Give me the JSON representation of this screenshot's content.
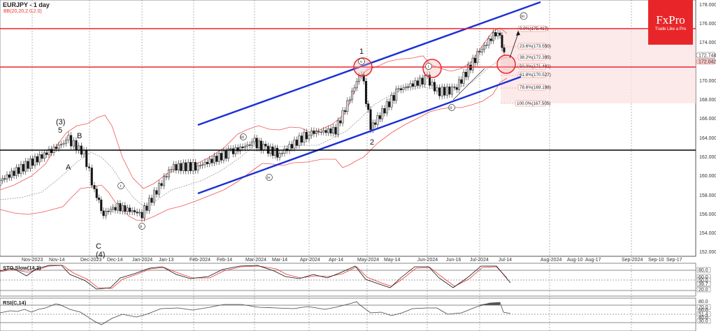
{
  "header": {
    "title": "EURJPY - 1 day",
    "indicator": "BB(20,20,2.0,2.0)"
  },
  "logo": {
    "brand": "FxPro",
    "tagline": "Trade Like a Pro",
    "color": "#e8262a"
  },
  "panels": {
    "stoch": {
      "label": "STO Slow(14,3)",
      "levels": [
        "80.0",
        "60.0",
        "50.0",
        "39.7",
        "20.0"
      ]
    },
    "rsi": {
      "label": "RSI(C,14)",
      "levels": [
        "80.0",
        "70.0",
        "60.0",
        "51.4",
        "40.0",
        "30.0"
      ]
    }
  },
  "chart_data": {
    "type": "candlestick",
    "title": "EURJPY - 1 day",
    "symbol": "EURJPY",
    "timeframe": "1 day",
    "ylim": [
      152,
      178
    ],
    "y_ticks": [
      "178.000",
      "176.000",
      "174.000",
      "172.000",
      "170.000",
      "168.000",
      "166.000",
      "164.000",
      "162.000",
      "160.000",
      "158.000",
      "156.000",
      "154.000",
      "152.000"
    ],
    "x_ticks": [
      "Nov-2023",
      "Nov-14",
      "Dec-2023",
      "Dec-14",
      "Jan-2024",
      "Jan-13",
      "Feb-2024",
      "Feb-14",
      "Mar-2024",
      "Mar-14",
      "Apr-2024",
      "Apr-14",
      "May-2024",
      "May-14",
      "Jun-2024",
      "Jun-16",
      "Jul-2024",
      "Jul-14",
      "Aug-2024",
      "Aug-10",
      "Aug-17",
      "Sep-2024",
      "Sep-10",
      "Sep-17"
    ],
    "price_labels": {
      "last": "172.042",
      "bid": "172.744"
    },
    "horizontal_levels": [
      {
        "price": 175.4,
        "color": "#e8262a",
        "name": "resistance"
      },
      {
        "price": 171.4,
        "color": "#e8262a",
        "name": "support"
      },
      {
        "price": 162.6,
        "color": "#000000",
        "name": "long-term support"
      }
    ],
    "fibonacci": [
      {
        "label": "0.0%(175.417)",
        "price": 175.417
      },
      {
        "label": "23.6%(173.550)",
        "price": 173.55
      },
      {
        "label": "38.2%(172.395)",
        "price": 172.395
      },
      {
        "label": "50.0%(171.461)",
        "price": 171.461
      },
      {
        "label": "61.8%(170.527)",
        "price": 170.527
      },
      {
        "label": "78.6%(169.198)",
        "price": 169.198
      },
      {
        "label": "100.0%(167.505)",
        "price": 167.505
      }
    ],
    "wave_labels": [
      "(3)",
      "5",
      "A",
      "B",
      "C",
      "(4)",
      "1",
      "2",
      "i",
      "ii",
      "iii",
      "iv",
      "v",
      "i",
      "ii",
      "iii"
    ],
    "channel_color": "#1a2fd6",
    "series": [
      {
        "name": "close_approx",
        "x": [
          "Nov-2023",
          "Nov-14",
          "Nov-25",
          "Dec-2023",
          "Dec-07",
          "Dec-14",
          "Dec-21",
          "Jan-2024",
          "Jan-13",
          "Feb-2024",
          "Feb-14",
          "Mar-2024",
          "Mar-08",
          "Mar-14",
          "Apr-2024",
          "Apr-14",
          "Apr-29",
          "May-2024",
          "May-14",
          "Jun-2024",
          "Jun-10",
          "Jun-16",
          "Jul-2024",
          "Jul-10",
          "Jul-14"
        ],
        "values": [
          159.5,
          162.5,
          163.8,
          162.3,
          158.5,
          156.0,
          156.8,
          156.0,
          160.9,
          161.0,
          162.5,
          163.5,
          162.8,
          162.3,
          164.5,
          164.8,
          171.0,
          165.0,
          169.0,
          170.2,
          168.8,
          169.0,
          173.0,
          175.3,
          172.0
        ]
      }
    ]
  }
}
